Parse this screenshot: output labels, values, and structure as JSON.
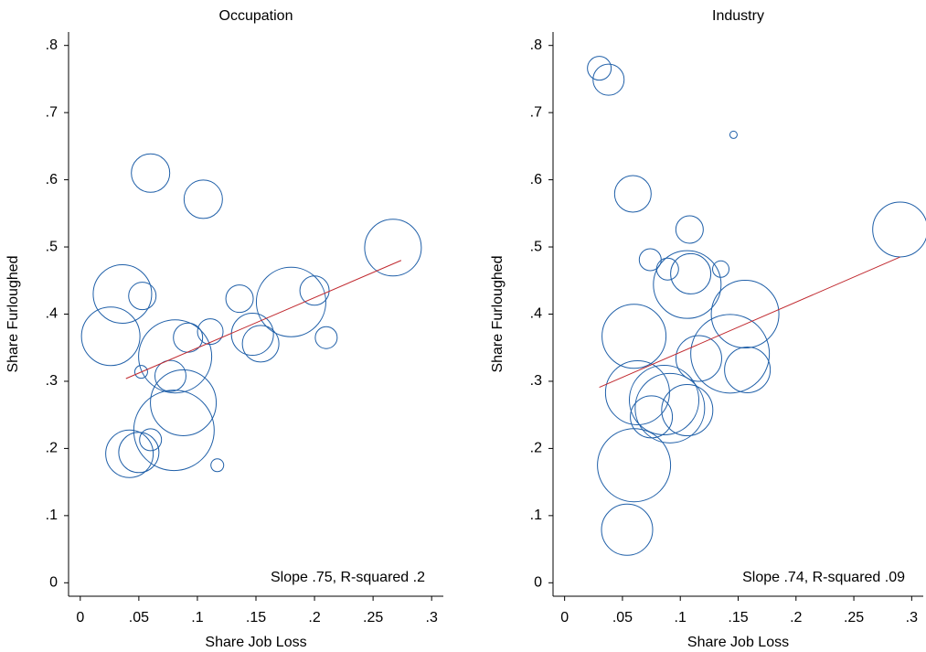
{
  "chart_data": [
    {
      "type": "scatter",
      "title": "Occupation",
      "x_label": "Share Job Loss",
      "y_label": "Share Furloughed",
      "annotation": "Slope .75, R-squared .2",
      "color": "#1f5fa8",
      "fit_color": "#c0282e",
      "xlim": [
        -0.01,
        0.31
      ],
      "ylim": [
        -0.02,
        0.82
      ],
      "xticks": [
        0,
        {
          "value": 0.05,
          "label": ".05"
        },
        {
          "value": 0.1,
          "label": ".1"
        },
        {
          "value": 0.15,
          "label": ".15"
        },
        {
          "value": 0.2,
          "label": ".2"
        },
        {
          "value": 0.25,
          "label": ".25"
        },
        {
          "value": 0.3,
          "label": ".3"
        }
      ],
      "yticks": [
        0,
        {
          "value": 0.1,
          "label": ".1"
        },
        {
          "value": 0.2,
          "label": ".2"
        },
        {
          "value": 0.3,
          "label": ".3"
        },
        {
          "value": 0.4,
          "label": ".4"
        },
        {
          "value": 0.5,
          "label": ".5"
        },
        {
          "value": 0.6,
          "label": ".6"
        },
        {
          "value": 0.7,
          "label": ".7"
        },
        {
          "value": 0.8,
          "label": ".8"
        }
      ],
      "points": {
        "x": [
          0.06,
          0.105,
          0.267,
          0.036,
          0.053,
          0.026,
          0.081,
          0.092,
          0.111,
          0.136,
          0.147,
          0.154,
          0.18,
          0.2,
          0.21,
          0.077,
          0.052,
          0.088,
          0.08,
          0.042,
          0.05,
          0.06,
          0.117
        ],
        "y": [
          0.61,
          0.571,
          0.499,
          0.43,
          0.427,
          0.367,
          0.337,
          0.365,
          0.374,
          0.423,
          0.37,
          0.356,
          0.418,
          0.435,
          0.365,
          0.308,
          0.314,
          0.268,
          0.227,
          0.192,
          0.194,
          0.213,
          0.175
        ],
        "sizes": [
          2.1,
          2.1,
          3.1,
          3.2,
          1.5,
          3.2,
          4.0,
          1.6,
          1.4,
          1.5,
          2.3,
          2.0,
          3.8,
          1.6,
          1.2,
          1.7,
          0.7,
          3.6,
          4.4,
          2.6,
          2.2,
          1.2,
          0.7
        ]
      },
      "fit": {
        "x": [
          0.039,
          0.274
        ],
        "y": [
          0.304,
          0.48
        ]
      }
    },
    {
      "type": "scatter",
      "title": "Industry",
      "x_label": "Share Job Loss",
      "y_label": "Share Furloughed",
      "annotation": "Slope .74, R-squared .09",
      "color": "#1f5fa8",
      "fit_color": "#c0282e",
      "xlim": [
        -0.01,
        0.31
      ],
      "ylim": [
        -0.02,
        0.82
      ],
      "xticks": [
        0,
        {
          "value": 0.05,
          "label": ".05"
        },
        {
          "value": 0.1,
          "label": ".1"
        },
        {
          "value": 0.15,
          "label": ".15"
        },
        {
          "value": 0.2,
          "label": ".2"
        },
        {
          "value": 0.25,
          "label": ".25"
        },
        {
          "value": 0.3,
          "label": ".3"
        }
      ],
      "yticks": [
        0,
        {
          "value": 0.1,
          "label": ".1"
        },
        {
          "value": 0.2,
          "label": ".2"
        },
        {
          "value": 0.3,
          "label": ".3"
        },
        {
          "value": 0.4,
          "label": ".4"
        },
        {
          "value": 0.5,
          "label": ".5"
        },
        {
          "value": 0.6,
          "label": ".6"
        },
        {
          "value": 0.7,
          "label": ".7"
        },
        {
          "value": 0.8,
          "label": ".8"
        }
      ],
      "points": {
        "x": [
          0.03,
          0.038,
          0.146,
          0.059,
          0.29,
          0.108,
          0.074,
          0.089,
          0.135,
          0.106,
          0.109,
          0.06,
          0.156,
          0.143,
          0.116,
          0.158,
          0.063,
          0.086,
          0.091,
          0.106,
          0.075,
          0.06,
          0.054
        ],
        "y": [
          0.766,
          0.749,
          0.667,
          0.579,
          0.526,
          0.526,
          0.481,
          0.467,
          0.467,
          0.444,
          0.46,
          0.367,
          0.4,
          0.341,
          0.334,
          0.317,
          0.283,
          0.272,
          0.26,
          0.257,
          0.247,
          0.175,
          0.079
        ],
        "sizes": [
          1.3,
          1.7,
          0.4,
          2.0,
          3.0,
          1.5,
          1.2,
          1.2,
          0.9,
          3.7,
          2.2,
          3.5,
          3.7,
          4.3,
          2.5,
          2.5,
          3.5,
          3.8,
          3.8,
          2.8,
          2.3,
          4.0,
          2.8
        ]
      },
      "fit": {
        "x": [
          0.03,
          0.29
        ],
        "y": [
          0.291,
          0.485
        ]
      }
    }
  ]
}
